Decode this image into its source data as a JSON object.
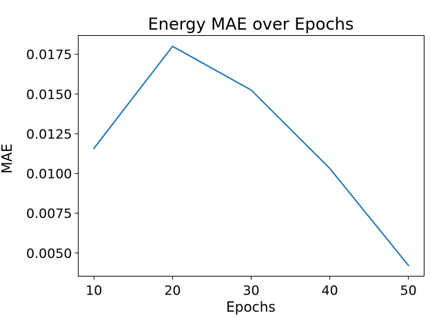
{
  "chart_data": {
    "type": "line",
    "title": "Energy MAE over Epochs",
    "xlabel": "Epochs",
    "ylabel": "MAE",
    "x": [
      10,
      20,
      30,
      40,
      50
    ],
    "series": [
      {
        "values": [
          0.01158,
          0.018,
          0.01525,
          0.01032,
          0.00422
        ],
        "color": "#1f77b4"
      }
    ],
    "xticks": [
      10,
      20,
      30,
      40,
      50
    ],
    "xtick_labels": [
      "10",
      "20",
      "30",
      "40",
      "50"
    ],
    "yticks": [
      0.005,
      0.0075,
      0.01,
      0.0125,
      0.015,
      0.0175
    ],
    "ytick_labels": [
      "0.0050",
      "0.0075",
      "0.0100",
      "0.0125",
      "0.0150",
      "0.0175"
    ],
    "xlim": [
      8,
      52
    ],
    "ylim": [
      0.00354,
      0.01868
    ],
    "grid": false,
    "legend": false
  }
}
